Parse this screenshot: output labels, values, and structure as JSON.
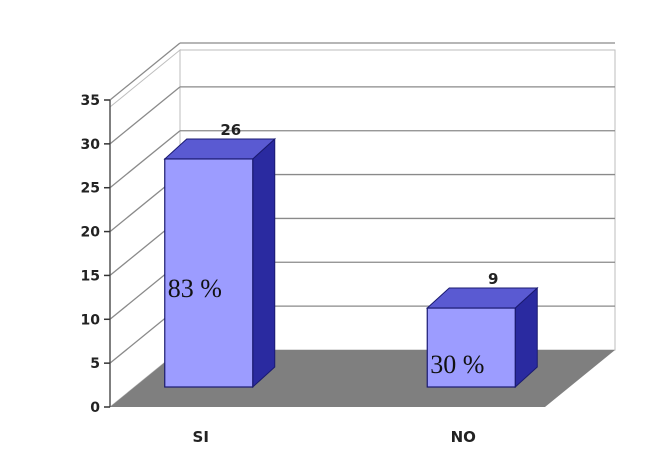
{
  "chart_data": {
    "type": "bar",
    "categories": [
      "SI",
      "NO"
    ],
    "values": [
      26,
      9
    ],
    "percent_labels": [
      "83 %",
      "30 %"
    ],
    "value_labels": [
      "26",
      "9"
    ],
    "yticks": [
      0,
      5,
      10,
      15,
      20,
      25,
      30,
      35
    ],
    "ylim": [
      0,
      35
    ],
    "grid": true,
    "legend": "none",
    "style": "3d",
    "colors": {
      "bar_front": "#9c9cff",
      "bar_top": "#5a5ad2",
      "bar_side": "#2a2aa0",
      "floor": "#7f7f7f",
      "grid": "#8a8a8a",
      "background": "#ffffff"
    }
  }
}
